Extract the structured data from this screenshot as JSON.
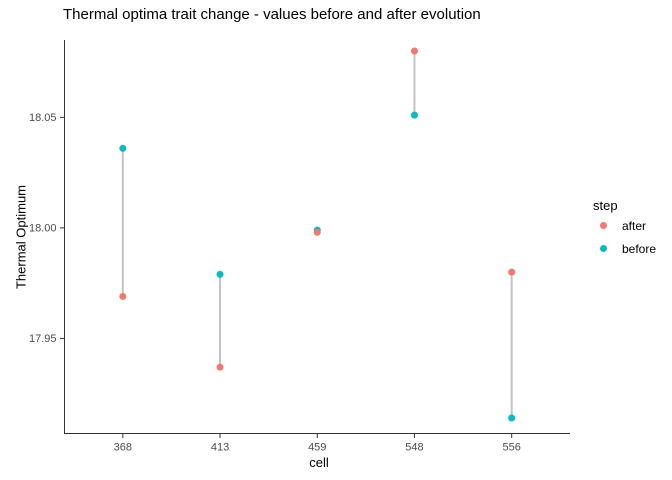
{
  "chart_data": {
    "type": "scatter",
    "title": "Thermal optima trait change - values before and after evolution",
    "xlabel": "cell",
    "ylabel": "Thermal Optimum",
    "categories": [
      "368",
      "413",
      "459",
      "548",
      "556"
    ],
    "series": [
      {
        "name": "before",
        "color": "#00BFC4",
        "values": [
          18.036,
          17.979,
          17.999,
          18.051,
          17.914
        ]
      },
      {
        "name": "after",
        "color": "#F8766D",
        "values": [
          17.969,
          17.937,
          17.998,
          18.08,
          17.98
        ]
      }
    ],
    "yticks": {
      "values": [
        17.95,
        18.0,
        18.05
      ],
      "labels": [
        "17.95",
        "18.00",
        "18.05"
      ]
    },
    "ylim": [
      17.907,
      18.085
    ],
    "grid": false,
    "legend": {
      "title": "step",
      "position": "right",
      "items": [
        {
          "label": "after",
          "color": "#F8766D"
        },
        {
          "label": "before",
          "color": "#00BFC4"
        }
      ]
    },
    "connector_color": "#C3C3C3",
    "axis_color": "#333333",
    "tick_label_color": "#4D4D4D"
  }
}
